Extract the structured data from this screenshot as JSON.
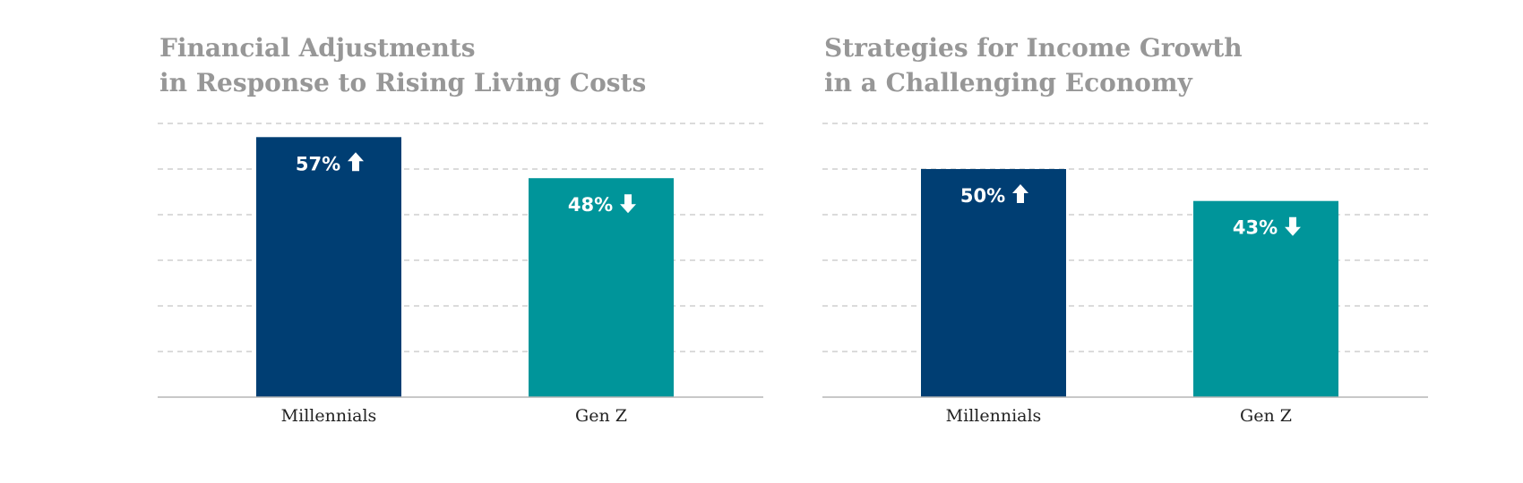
{
  "chart_data": [
    {
      "type": "bar",
      "title": "Financial Adjustments in Response to Rising Living Costs",
      "title_lines": [
        "Financial Adjustments",
        "in Response to Rising Living Costs"
      ],
      "categories": [
        "Millennials",
        "Gen Z"
      ],
      "values": [
        57,
        48
      ],
      "value_labels": [
        "57%",
        "48%"
      ],
      "arrows": [
        "up-arrow",
        "down-arrow"
      ],
      "colors": [
        "#003e73",
        "#00959a"
      ],
      "ylim": [
        0,
        60
      ],
      "grid": true,
      "xlabel": "",
      "ylabel": ""
    },
    {
      "type": "bar",
      "title": "Strategies for Income Growth in a Challenging Economy",
      "title_lines": [
        "Strategies for Income Growth",
        "in a Challenging Economy"
      ],
      "categories": [
        "Millennials",
        "Gen Z"
      ],
      "values": [
        50,
        43
      ],
      "value_labels": [
        "50%",
        "43%"
      ],
      "arrows": [
        "up-arrow",
        "down-arrow"
      ],
      "colors": [
        "#003e73",
        "#00959a"
      ],
      "ylim": [
        0,
        60
      ],
      "grid": true,
      "xlabel": "",
      "ylabel": ""
    }
  ]
}
